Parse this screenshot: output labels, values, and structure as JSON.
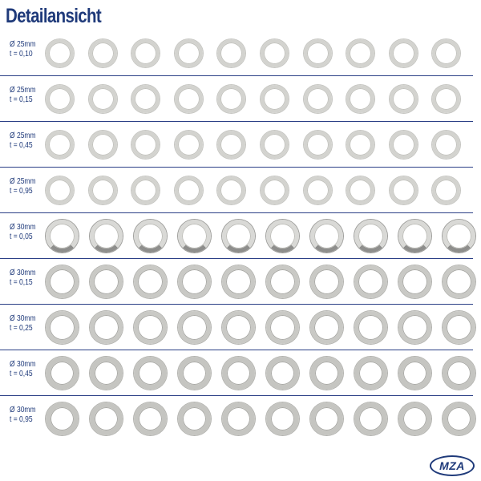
{
  "title": "Detailansicht",
  "rows": [
    {
      "diameter": "Ø 25mm",
      "thickness": "t = 0,10",
      "count": 10
    },
    {
      "diameter": "Ø 25mm",
      "thickness": "t = 0,15",
      "count": 10
    },
    {
      "diameter": "Ø 25mm",
      "thickness": "t = 0,45",
      "count": 10
    },
    {
      "diameter": "Ø 25mm",
      "thickness": "t = 0,95",
      "count": 10
    },
    {
      "diameter": "Ø 30mm",
      "thickness": "t = 0,05",
      "count": 10
    },
    {
      "diameter": "Ø 30mm",
      "thickness": "t = 0,15",
      "count": 10
    },
    {
      "diameter": "Ø 30mm",
      "thickness": "t = 0,25",
      "count": 10
    },
    {
      "diameter": "Ø 30mm",
      "thickness": "t = 0,45",
      "count": 10
    },
    {
      "diameter": "Ø 30mm",
      "thickness": "t = 0,95",
      "count": 10
    }
  ],
  "logo": {
    "text": "MZA"
  },
  "colors": {
    "accent": "#1f3a7a",
    "ring": "#c9c9c5"
  }
}
